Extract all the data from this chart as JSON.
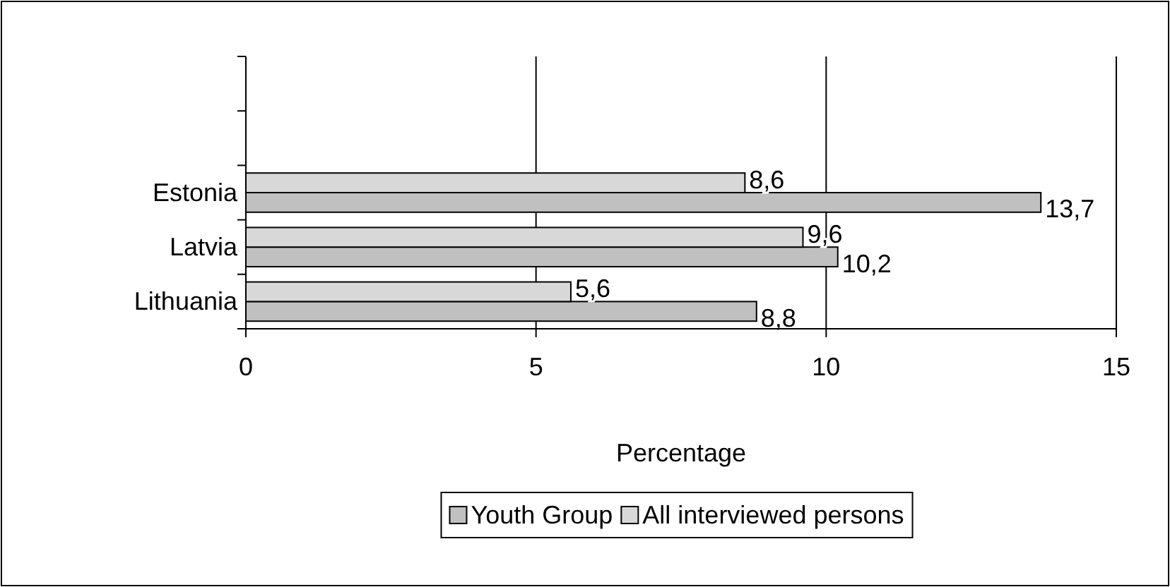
{
  "chart_data": {
    "type": "bar",
    "orientation": "horizontal",
    "xlabel": "Percentage",
    "categories": [
      null,
      null,
      "Estonia",
      "Latvia",
      "Lithuania"
    ],
    "series": [
      {
        "name": "Youth Group",
        "color": "#c0c0c0",
        "values": [
          null,
          null,
          13.7,
          10.2,
          8.8
        ],
        "value_labels": [
          null,
          null,
          "13,7",
          "10,2",
          "8,8"
        ]
      },
      {
        "name": "All interviewed persons",
        "color": "#d8d8d8",
        "values": [
          null,
          null,
          8.6,
          9.6,
          5.6
        ],
        "value_labels": [
          null,
          null,
          "8,6",
          "9,6",
          "5,6"
        ]
      }
    ],
    "xlim": [
      0,
      15
    ],
    "xticks": [
      0,
      5,
      10,
      15
    ],
    "grid": "x",
    "legend": "bottom"
  }
}
